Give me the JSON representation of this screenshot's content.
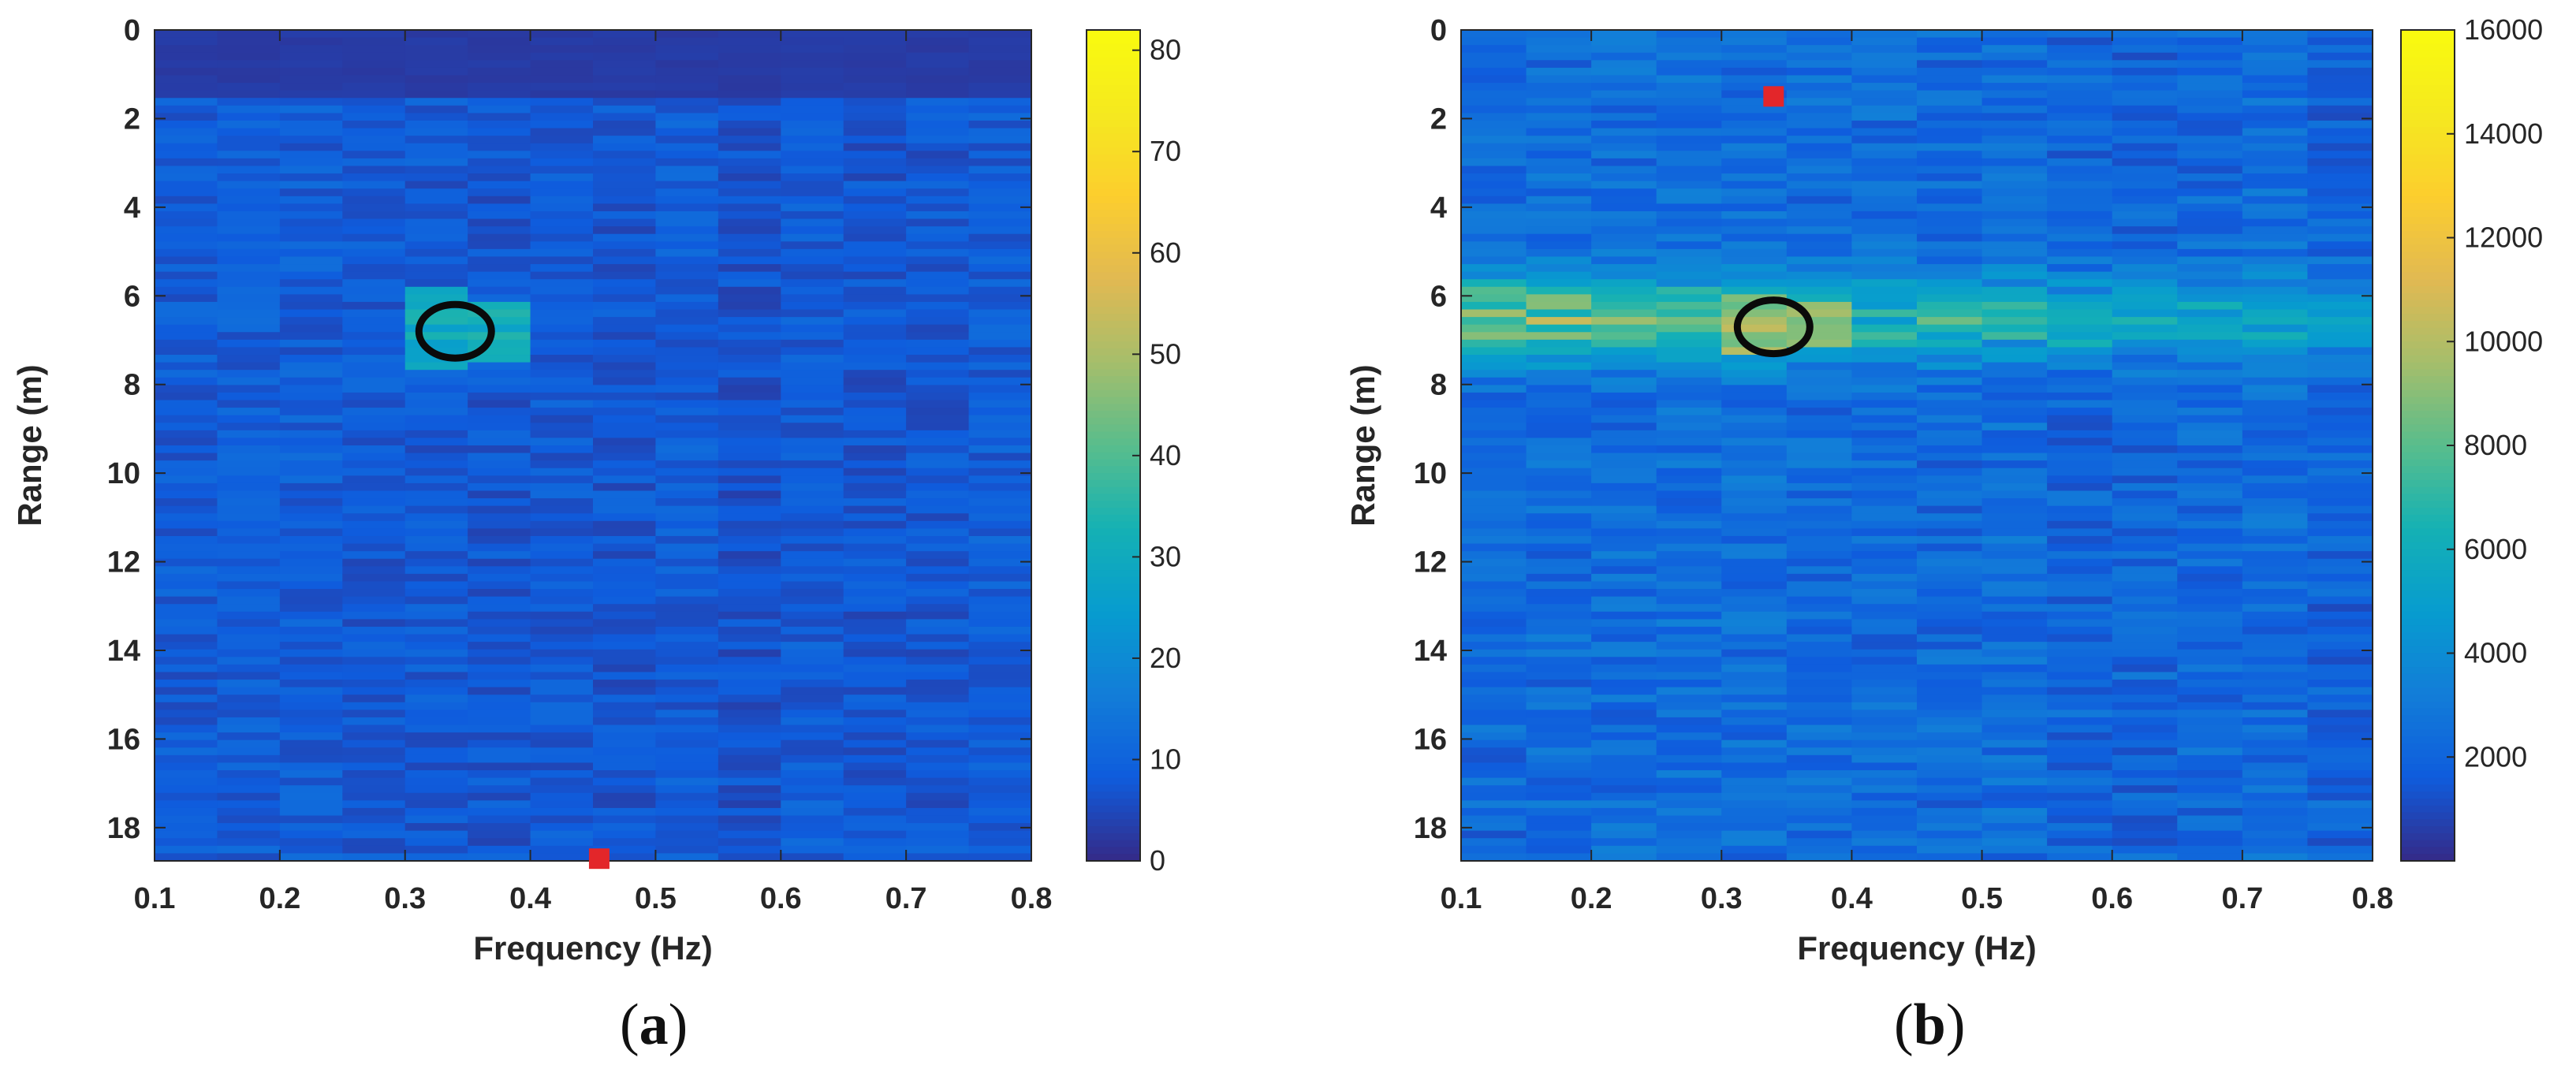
{
  "chart_data": [
    {
      "type": "heatmap",
      "panel_label": "a",
      "xlabel": "Frequency (Hz)",
      "ylabel": "Range (m)",
      "xlim": [
        0.1,
        0.8
      ],
      "ylim": [
        0,
        18.75
      ],
      "xticks": [
        "0.1",
        "0.2",
        "0.3",
        "0.4",
        "0.5",
        "0.6",
        "0.7",
        "0.8"
      ],
      "yticks": [
        "0",
        "2",
        "4",
        "6",
        "8",
        "10",
        "12",
        "14",
        "16",
        "18"
      ],
      "colorbar": {
        "min": 0,
        "max": 82,
        "ticks": [
          "0",
          "10",
          "20",
          "30",
          "40",
          "50",
          "60",
          "70",
          "80"
        ]
      },
      "colormap": "parula",
      "grid": false,
      "background_level": 8,
      "highlights": [
        {
          "kind": "ellipse",
          "frequency": 0.34,
          "range": 6.8,
          "level": 30
        },
        {
          "kind": "marker",
          "frequency": 0.455,
          "range": 18.7,
          "color": "#e3262a"
        }
      ]
    },
    {
      "type": "heatmap",
      "panel_label": "b",
      "xlabel": "Frequency (Hz)",
      "ylabel": "Range (m)",
      "xlim": [
        0.1,
        0.8
      ],
      "ylim": [
        0,
        18.75
      ],
      "xticks": [
        "0.1",
        "0.2",
        "0.3",
        "0.4",
        "0.5",
        "0.6",
        "0.7",
        "0.8"
      ],
      "yticks": [
        "0",
        "2",
        "4",
        "6",
        "8",
        "10",
        "12",
        "14",
        "16",
        "18"
      ],
      "colorbar": {
        "min": 0,
        "max": 16000,
        "ticks": [
          "2000",
          "4000",
          "6000",
          "8000",
          "10000",
          "12000",
          "14000",
          "16000"
        ]
      },
      "colormap": "parula",
      "grid": false,
      "background_level": 2200,
      "highlights": [
        {
          "kind": "ellipse",
          "frequency": 0.34,
          "range": 6.7,
          "level": 9500
        },
        {
          "kind": "marker",
          "frequency": 0.34,
          "range": 1.5,
          "color": "#e3262a"
        }
      ]
    }
  ]
}
